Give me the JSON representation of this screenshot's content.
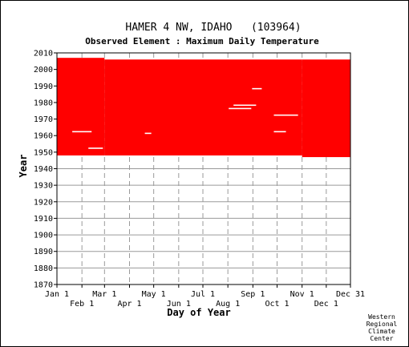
{
  "chart_data": {
    "type": "heatmap",
    "title": "HAMER 4 NW, IDAHO   (103964)",
    "subtitle": "Observed Element : Maximum Daily Temperature",
    "xlabel": "Day of Year",
    "ylabel": "Year",
    "xlim": [
      1,
      365
    ],
    "ylim": [
      1870,
      2010
    ],
    "grid": true,
    "x_ticks_top_row": [
      {
        "label": "Jan 1",
        "day": 1
      },
      {
        "label": "Mar 1",
        "day": 60
      },
      {
        "label": "May 1",
        "day": 121
      },
      {
        "label": "Jul 1",
        "day": 182
      },
      {
        "label": "Sep 1",
        "day": 244
      },
      {
        "label": "Nov 1",
        "day": 305
      },
      {
        "label": "Dec 31",
        "day": 365
      }
    ],
    "x_ticks_bottom_row": [
      {
        "label": "Feb 1",
        "day": 32
      },
      {
        "label": "Apr 1",
        "day": 91
      },
      {
        "label": "Jun 1",
        "day": 152
      },
      {
        "label": "Aug 1",
        "day": 213
      },
      {
        "label": "Oct 1",
        "day": 274
      },
      {
        "label": "Dec 1",
        "day": 335
      }
    ],
    "y_ticks": [
      1870,
      1880,
      1890,
      1900,
      1910,
      1920,
      1930,
      1940,
      1950,
      1960,
      1970,
      1980,
      1990,
      2000,
      2010
    ],
    "data_color": "#ff0000",
    "coverage": [
      {
        "day_start": 1,
        "day_end": 60,
        "year_start": 1948,
        "year_end": 2006
      },
      {
        "day_start": 60,
        "day_end": 305,
        "year_start": 1948,
        "year_end": 2005
      },
      {
        "day_start": 305,
        "day_end": 365,
        "year_start": 1947,
        "year_end": 2005
      }
    ],
    "missing_segments": [
      {
        "year": 1962,
        "day_start": 20,
        "day_end": 44
      },
      {
        "year": 1962,
        "day_start": 270,
        "day_end": 285
      },
      {
        "year": 1978,
        "day_start": 220,
        "day_end": 248
      },
      {
        "year": 1976,
        "day_start": 214,
        "day_end": 242
      },
      {
        "year": 1972,
        "day_start": 270,
        "day_end": 300
      },
      {
        "year": 1988,
        "day_start": 243,
        "day_end": 255
      },
      {
        "year": 1961,
        "day_start": 110,
        "day_end": 118
      },
      {
        "year": 1952,
        "day_start": 40,
        "day_end": 58
      }
    ]
  },
  "credit": [
    "Western",
    "Regional",
    "Climate",
    "Center"
  ]
}
